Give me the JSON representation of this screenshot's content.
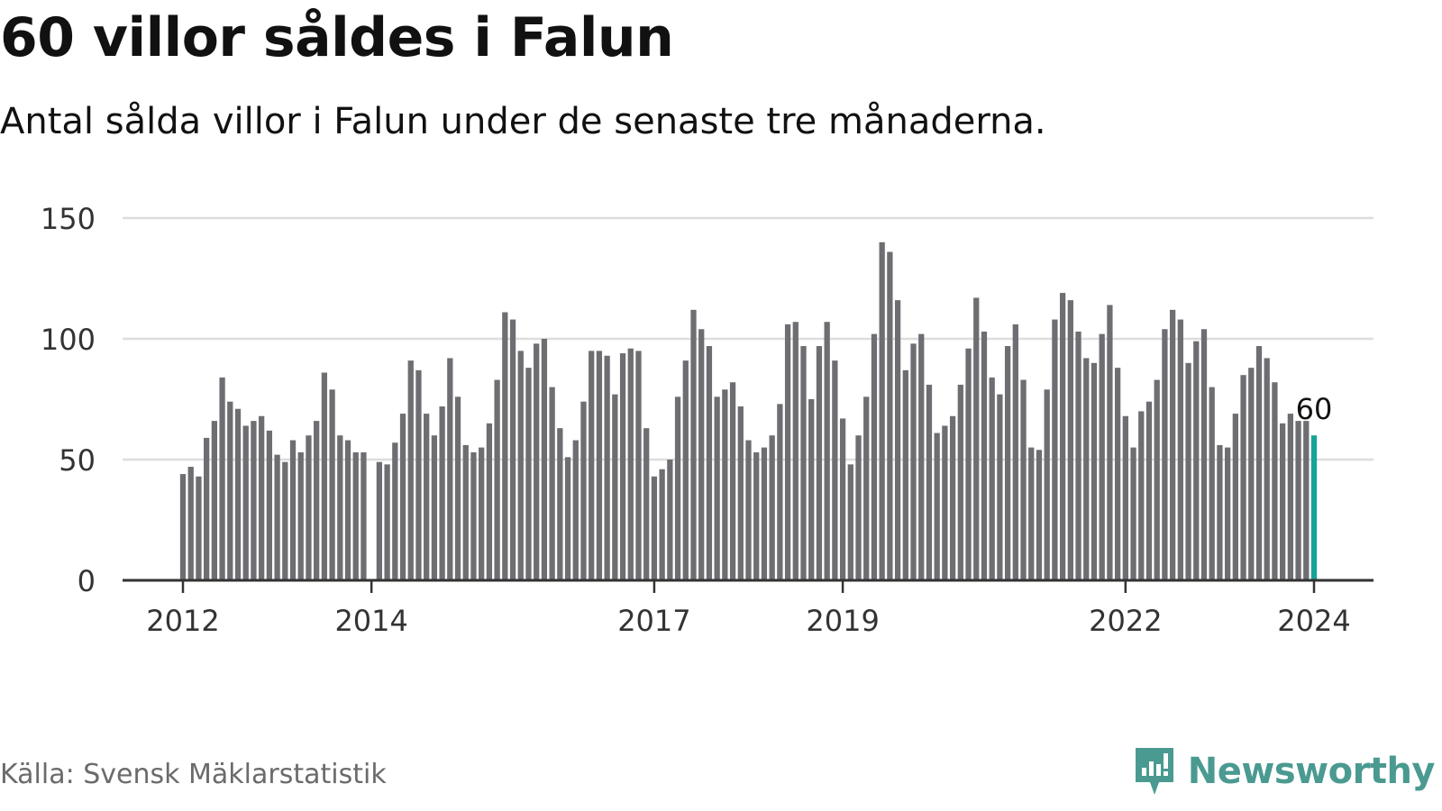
{
  "title": "60 villor såldes i Falun",
  "subtitle": "Antal sålda villor i Falun under de senaste tre månaderna.",
  "source": "Källa: Svensk Mäklarstatistik",
  "brand": "Newsworthy",
  "colors": {
    "bar": "#6e6d72",
    "highlight": "#17a398",
    "grid": "#dddddd",
    "axis": "#333333",
    "brand": "#4a9a91"
  },
  "chart_data": {
    "type": "bar",
    "title": "60 villor såldes i Falun",
    "xlabel": "",
    "ylabel": "",
    "ylim": [
      0,
      150
    ],
    "yticks": [
      0,
      50,
      100,
      150
    ],
    "x_tick_labels": [
      {
        "label": "2012",
        "index": 0
      },
      {
        "label": "2014",
        "index": 24
      },
      {
        "label": "2017",
        "index": 60
      },
      {
        "label": "2019",
        "index": 84
      },
      {
        "label": "2022",
        "index": 120
      },
      {
        "label": "2024",
        "index": 144
      }
    ],
    "values": [
      44,
      47,
      43,
      59,
      66,
      84,
      74,
      71,
      64,
      66,
      68,
      62,
      52,
      49,
      58,
      53,
      60,
      66,
      86,
      79,
      60,
      58,
      53,
      53,
      null,
      49,
      48,
      57,
      69,
      91,
      87,
      69,
      60,
      72,
      92,
      76,
      56,
      53,
      55,
      65,
      83,
      111,
      108,
      95,
      88,
      98,
      100,
      80,
      63,
      51,
      58,
      74,
      95,
      95,
      93,
      77,
      94,
      96,
      95,
      63,
      43,
      46,
      50,
      76,
      91,
      112,
      104,
      97,
      76,
      79,
      82,
      72,
      58,
      53,
      55,
      60,
      73,
      106,
      107,
      97,
      75,
      97,
      107,
      91,
      67,
      48,
      60,
      76,
      102,
      140,
      136,
      116,
      87,
      98,
      102,
      81,
      61,
      64,
      68,
      81,
      96,
      117,
      103,
      84,
      77,
      97,
      106,
      83,
      55,
      54,
      79,
      108,
      119,
      116,
      103,
      92,
      90,
      102,
      114,
      88,
      68,
      55,
      70,
      74,
      83,
      104,
      112,
      108,
      90,
      99,
      104,
      80,
      56,
      55,
      69,
      85,
      88,
      97,
      92,
      82,
      65,
      69,
      66,
      66,
      60
    ],
    "highlight_index": 144,
    "data_labels": [
      {
        "index": 144,
        "text": "60"
      }
    ]
  }
}
